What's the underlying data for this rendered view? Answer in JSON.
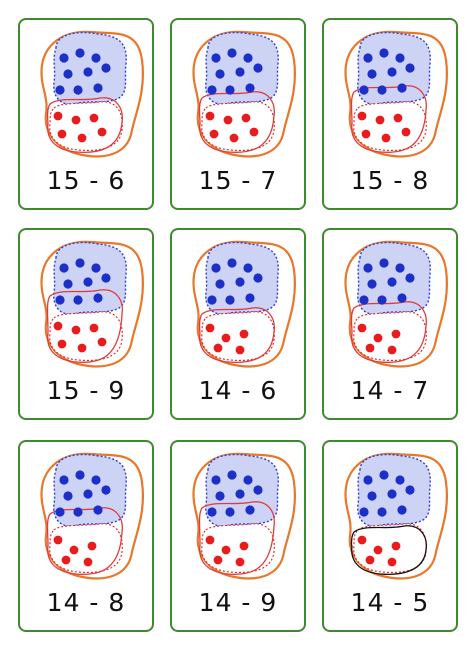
{
  "cards": [
    {
      "label": "15 - 6",
      "blue_dots": 9,
      "red_dots": 6,
      "taken_away": 6
    },
    {
      "label": "15 - 7",
      "blue_dots": 9,
      "red_dots": 6,
      "taken_away": 7
    },
    {
      "label": "15 - 8",
      "blue_dots": 9,
      "red_dots": 6,
      "taken_away": 8
    },
    {
      "label": "15 - 9",
      "blue_dots": 9,
      "red_dots": 6,
      "taken_away": 9
    },
    {
      "label": "14 - 6",
      "blue_dots": 9,
      "red_dots": 5,
      "taken_away": 6
    },
    {
      "label": "14 - 7",
      "blue_dots": 9,
      "red_dots": 5,
      "taken_away": 7
    },
    {
      "label": "14 - 8",
      "blue_dots": 9,
      "red_dots": 5,
      "taken_away": 8
    },
    {
      "label": "14 - 9",
      "blue_dots": 9,
      "red_dots": 5,
      "taken_away": 9
    },
    {
      "label": "14 - 5",
      "blue_dots": 9,
      "red_dots": 5,
      "taken_away": 5
    }
  ],
  "colors": {
    "card_border": "#3f8a2f",
    "outer_outline": "#e8772a",
    "blue_region_fill": "#cdd3f5",
    "blue_region_border": "#2a3bd6",
    "blue_dot": "#1c2fc7",
    "red_dot": "#e81c1c",
    "selection_outline": "#e23a3a",
    "last_selection_outline": "#111111"
  }
}
